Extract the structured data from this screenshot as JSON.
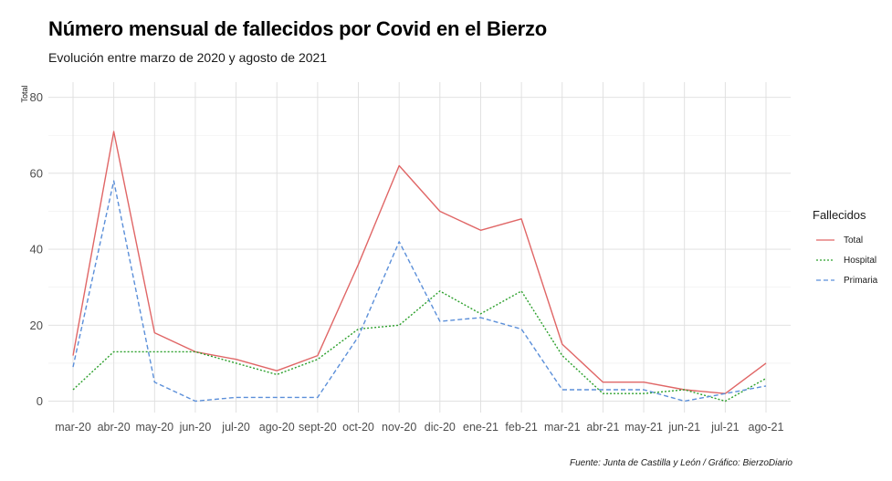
{
  "title": "Número mensual de fallecidos por Covid en el Bierzo",
  "subtitle": "Evolución entre marzo de 2020 y agosto de 2021",
  "caption": "Fuente: Junta de Castilla y León / Gráfico: BierzoDiario",
  "legend": {
    "title": "Fallecidos",
    "position": "right"
  },
  "colors": {
    "Total": "#e06666",
    "Hospital": "#2ca02c",
    "Primaria": "#5b8fd9",
    "grid": "#dedede",
    "axis_text": "#4d4d4d"
  },
  "chart_data": {
    "type": "line",
    "title": "Número mensual de fallecidos por Covid en el Bierzo",
    "subtitle": "Evolución entre marzo de 2020 y agosto de 2021",
    "xlabel": "",
    "ylabel": "Total",
    "ylim": [
      -3,
      84
    ],
    "yticks": [
      0,
      20,
      40,
      60,
      80
    ],
    "grid": true,
    "categories": [
      "mar-20",
      "abr-20",
      "may-20",
      "jun-20",
      "jul-20",
      "ago-20",
      "sept-20",
      "oct-20",
      "nov-20",
      "dic-20",
      "ene-21",
      "feb-21",
      "mar-21",
      "abr-21",
      "may-21",
      "jun-21",
      "jul-21",
      "ago-21"
    ],
    "series": [
      {
        "name": "Total",
        "line_style": "solid",
        "values": [
          12,
          71,
          18,
          13,
          11,
          8,
          12,
          36,
          62,
          50,
          45,
          48,
          15,
          5,
          5,
          3,
          2,
          10
        ]
      },
      {
        "name": "Hospital",
        "line_style": "dotted",
        "values": [
          3,
          13,
          13,
          13,
          10,
          7,
          11,
          19,
          20,
          29,
          23,
          29,
          12,
          2,
          2,
          3,
          0,
          6
        ]
      },
      {
        "name": "Primaria",
        "line_style": "dashed",
        "values": [
          9,
          58,
          5,
          0,
          1,
          1,
          1,
          17,
          42,
          21,
          22,
          19,
          3,
          3,
          3,
          0,
          2,
          4
        ]
      }
    ]
  }
}
